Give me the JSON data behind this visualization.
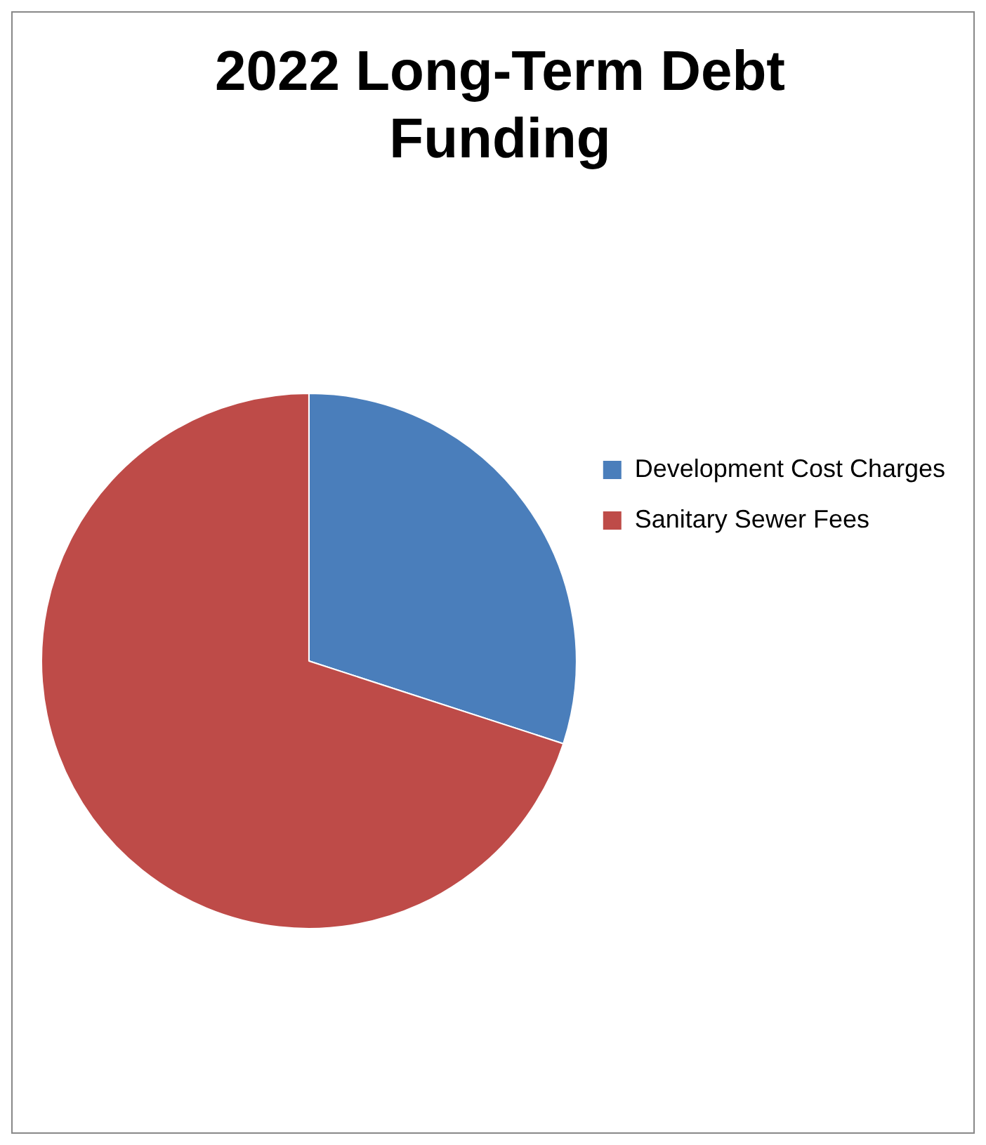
{
  "chart_data": {
    "type": "pie",
    "title": "2022 Long-Term Debt Funding",
    "categories": [
      "Development Cost Charges",
      "Sanitary Sewer Fees"
    ],
    "values": [
      30,
      70
    ],
    "colors": [
      "#4a7ebb",
      "#be4b48"
    ],
    "legend": "right"
  }
}
